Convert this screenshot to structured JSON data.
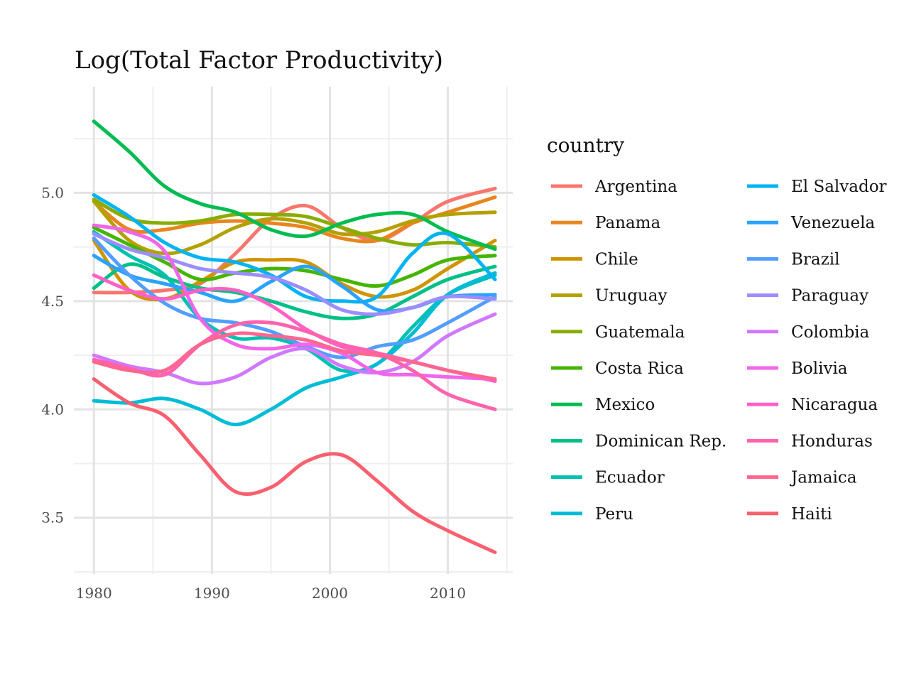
{
  "chart_data": {
    "type": "line",
    "title": "Log(Total Factor Productivity)",
    "xlabel": "",
    "ylabel": "",
    "xlim": [
      1978.3,
      2015.5
    ],
    "ylim": [
      3.24,
      5.49
    ],
    "x_ticks": [
      1980,
      1990,
      2000,
      2010
    ],
    "y_ticks": [
      3.5,
      4.0,
      4.5,
      5.0
    ],
    "x_tick_labels": [
      "1980",
      "1990",
      "2000",
      "2010"
    ],
    "y_tick_labels": [
      "3.5",
      "4.0",
      "4.5",
      "5.0"
    ],
    "grid": true,
    "legend": {
      "title": "country",
      "position": "right",
      "columns": 2
    },
    "x": [
      1980,
      1983,
      1986,
      1989,
      1992,
      1995,
      1998,
      2001,
      2004,
      2007,
      2010,
      2014
    ],
    "series": [
      {
        "name": "Argentina",
        "color": "#F8766D",
        "values": [
          4.54,
          4.54,
          4.55,
          4.58,
          4.72,
          4.88,
          4.94,
          4.84,
          4.78,
          4.86,
          4.96,
          5.02
        ]
      },
      {
        "name": "Panama",
        "color": "#E7851E",
        "values": [
          4.96,
          4.83,
          4.83,
          4.86,
          4.87,
          4.86,
          4.84,
          4.79,
          4.78,
          4.86,
          4.91,
          4.98
        ]
      },
      {
        "name": "Chile",
        "color": "#D09400",
        "values": [
          4.78,
          4.55,
          4.51,
          4.59,
          4.68,
          4.69,
          4.68,
          4.58,
          4.52,
          4.55,
          4.65,
          4.78
        ]
      },
      {
        "name": "Uruguay",
        "color": "#B2A100",
        "values": [
          4.96,
          4.78,
          4.72,
          4.76,
          4.84,
          4.88,
          4.86,
          4.81,
          4.82,
          4.87,
          4.9,
          4.91
        ]
      },
      {
        "name": "Guatemala",
        "color": "#89AC00",
        "values": [
          4.97,
          4.88,
          4.86,
          4.87,
          4.9,
          4.9,
          4.89,
          4.84,
          4.79,
          4.76,
          4.77,
          4.75
        ]
      },
      {
        "name": "Costa Rica",
        "color": "#45B500",
        "values": [
          4.84,
          4.76,
          4.68,
          4.6,
          4.63,
          4.65,
          4.64,
          4.6,
          4.57,
          4.62,
          4.69,
          4.71
        ]
      },
      {
        "name": "Mexico",
        "color": "#00BC51",
        "values": [
          5.33,
          5.19,
          5.03,
          4.95,
          4.91,
          4.83,
          4.8,
          4.86,
          4.9,
          4.9,
          4.82,
          4.74
        ]
      },
      {
        "name": "Dominican Rep.",
        "color": "#00C087",
        "values": [
          4.56,
          4.67,
          4.61,
          4.56,
          4.54,
          4.5,
          4.45,
          4.42,
          4.44,
          4.52,
          4.6,
          4.66
        ]
      },
      {
        "name": "Ecuador",
        "color": "#00C0B2",
        "values": [
          4.82,
          4.71,
          4.62,
          4.42,
          4.33,
          4.33,
          4.28,
          4.18,
          4.21,
          4.38,
          4.53,
          4.62
        ]
      },
      {
        "name": "Peru",
        "color": "#00BCD6",
        "values": [
          4.04,
          4.03,
          4.05,
          4.0,
          3.93,
          4.0,
          4.1,
          4.15,
          4.21,
          4.35,
          4.53,
          4.63
        ]
      },
      {
        "name": "El Salvador",
        "color": "#00B3F2",
        "values": [
          4.99,
          4.89,
          4.77,
          4.7,
          4.68,
          4.62,
          4.52,
          4.5,
          4.52,
          4.72,
          4.81,
          4.6
        ]
      },
      {
        "name": "Venezuela",
        "color": "#29A3FF",
        "values": [
          4.71,
          4.62,
          4.58,
          4.54,
          4.5,
          4.59,
          4.66,
          4.57,
          4.46,
          4.47,
          4.52,
          4.53
        ]
      },
      {
        "name": "Brazil",
        "color": "#529EFF",
        "values": [
          4.79,
          4.62,
          4.49,
          4.42,
          4.4,
          4.36,
          4.29,
          4.24,
          4.29,
          4.32,
          4.4,
          4.52
        ]
      },
      {
        "name": "Paraguay",
        "color": "#9C8DFF",
        "values": [
          4.81,
          4.74,
          4.7,
          4.65,
          4.63,
          4.61,
          4.55,
          4.46,
          4.44,
          4.47,
          4.52,
          4.51
        ]
      },
      {
        "name": "Colombia",
        "color": "#D277FF",
        "values": [
          4.25,
          4.2,
          4.17,
          4.12,
          4.15,
          4.24,
          4.28,
          4.2,
          4.17,
          4.22,
          4.34,
          4.44
        ]
      },
      {
        "name": "Bolivia",
        "color": "#F066EA",
        "values": [
          4.85,
          4.82,
          4.73,
          4.42,
          4.3,
          4.28,
          4.3,
          4.26,
          4.17,
          4.16,
          4.15,
          4.14
        ]
      },
      {
        "name": "Nicaragua",
        "color": "#FF61C8",
        "values": [
          4.62,
          4.55,
          4.51,
          4.55,
          4.55,
          4.48,
          4.37,
          4.29,
          4.26,
          4.22,
          4.18,
          4.13
        ]
      },
      {
        "name": "Honduras",
        "color": "#FF63AD",
        "values": [
          4.23,
          4.19,
          4.16,
          4.3,
          4.39,
          4.4,
          4.36,
          4.3,
          4.26,
          4.18,
          4.07,
          4.0
        ]
      },
      {
        "name": "Jamaica",
        "color": "#FF6690",
        "values": [
          4.22,
          4.18,
          4.18,
          4.3,
          4.35,
          4.34,
          4.32,
          4.27,
          4.25,
          4.22,
          4.18,
          4.14
        ]
      },
      {
        "name": "Haiti",
        "color": "#F8606F",
        "values": [
          4.14,
          4.03,
          3.97,
          3.79,
          3.62,
          3.64,
          3.76,
          3.79,
          3.67,
          3.53,
          3.44,
          3.34
        ]
      }
    ]
  }
}
